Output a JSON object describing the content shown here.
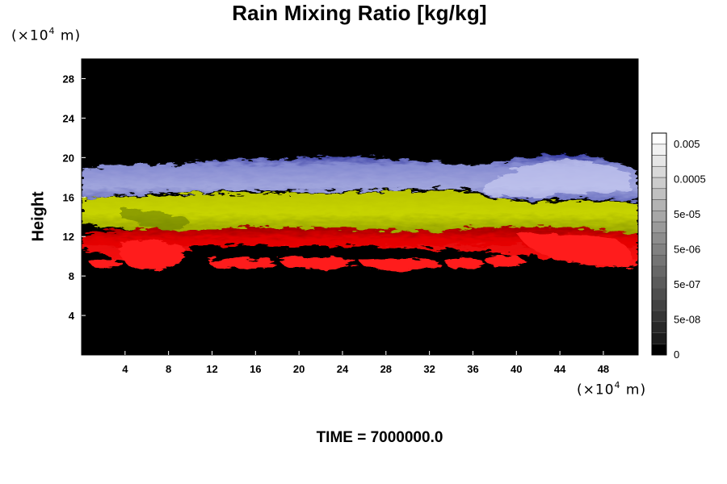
{
  "chart_data": {
    "type": "heatmap",
    "title": "Rain Mixing Ratio [kg/kg]",
    "xlabel": "",
    "ylabel": "Height",
    "x_unit": "(×10⁴ m)",
    "y_unit": "(×10⁴ m)",
    "x_unit_parts": {
      "prefix": "(×10",
      "exp": "4",
      "suffix": " m)"
    },
    "y_unit_parts": {
      "prefix": "(×10",
      "exp": "4",
      "suffix": " m)"
    },
    "xlim": [
      0,
      51.2
    ],
    "ylim": [
      0,
      30
    ],
    "x_ticks": [
      4,
      8,
      12,
      16,
      20,
      24,
      28,
      32,
      36,
      40,
      44,
      48
    ],
    "y_ticks": [
      4,
      8,
      12,
      16,
      20,
      24,
      28
    ],
    "background_color": "#000000",
    "layers": [
      {
        "name": "",
        "color": "#ff1a1a",
        "y_range": [
          8.5,
          13
        ]
      },
      {
        "name": "",
        "color": "#c9d800",
        "y_range": [
          12,
          16.5
        ]
      },
      {
        "name": "",
        "color": "#8f96e6",
        "y_range": [
          15,
          20.5
        ]
      }
    ],
    "colorbar": {
      "labels": [
        "0.005",
        "0.0005",
        "5e-05",
        "5e-06",
        "5e-07",
        "5e-08",
        "0"
      ],
      "levels": 20,
      "color_low": "#000000",
      "color_high": "#ffffff"
    },
    "annotation": "TIME = 7000000.0"
  }
}
